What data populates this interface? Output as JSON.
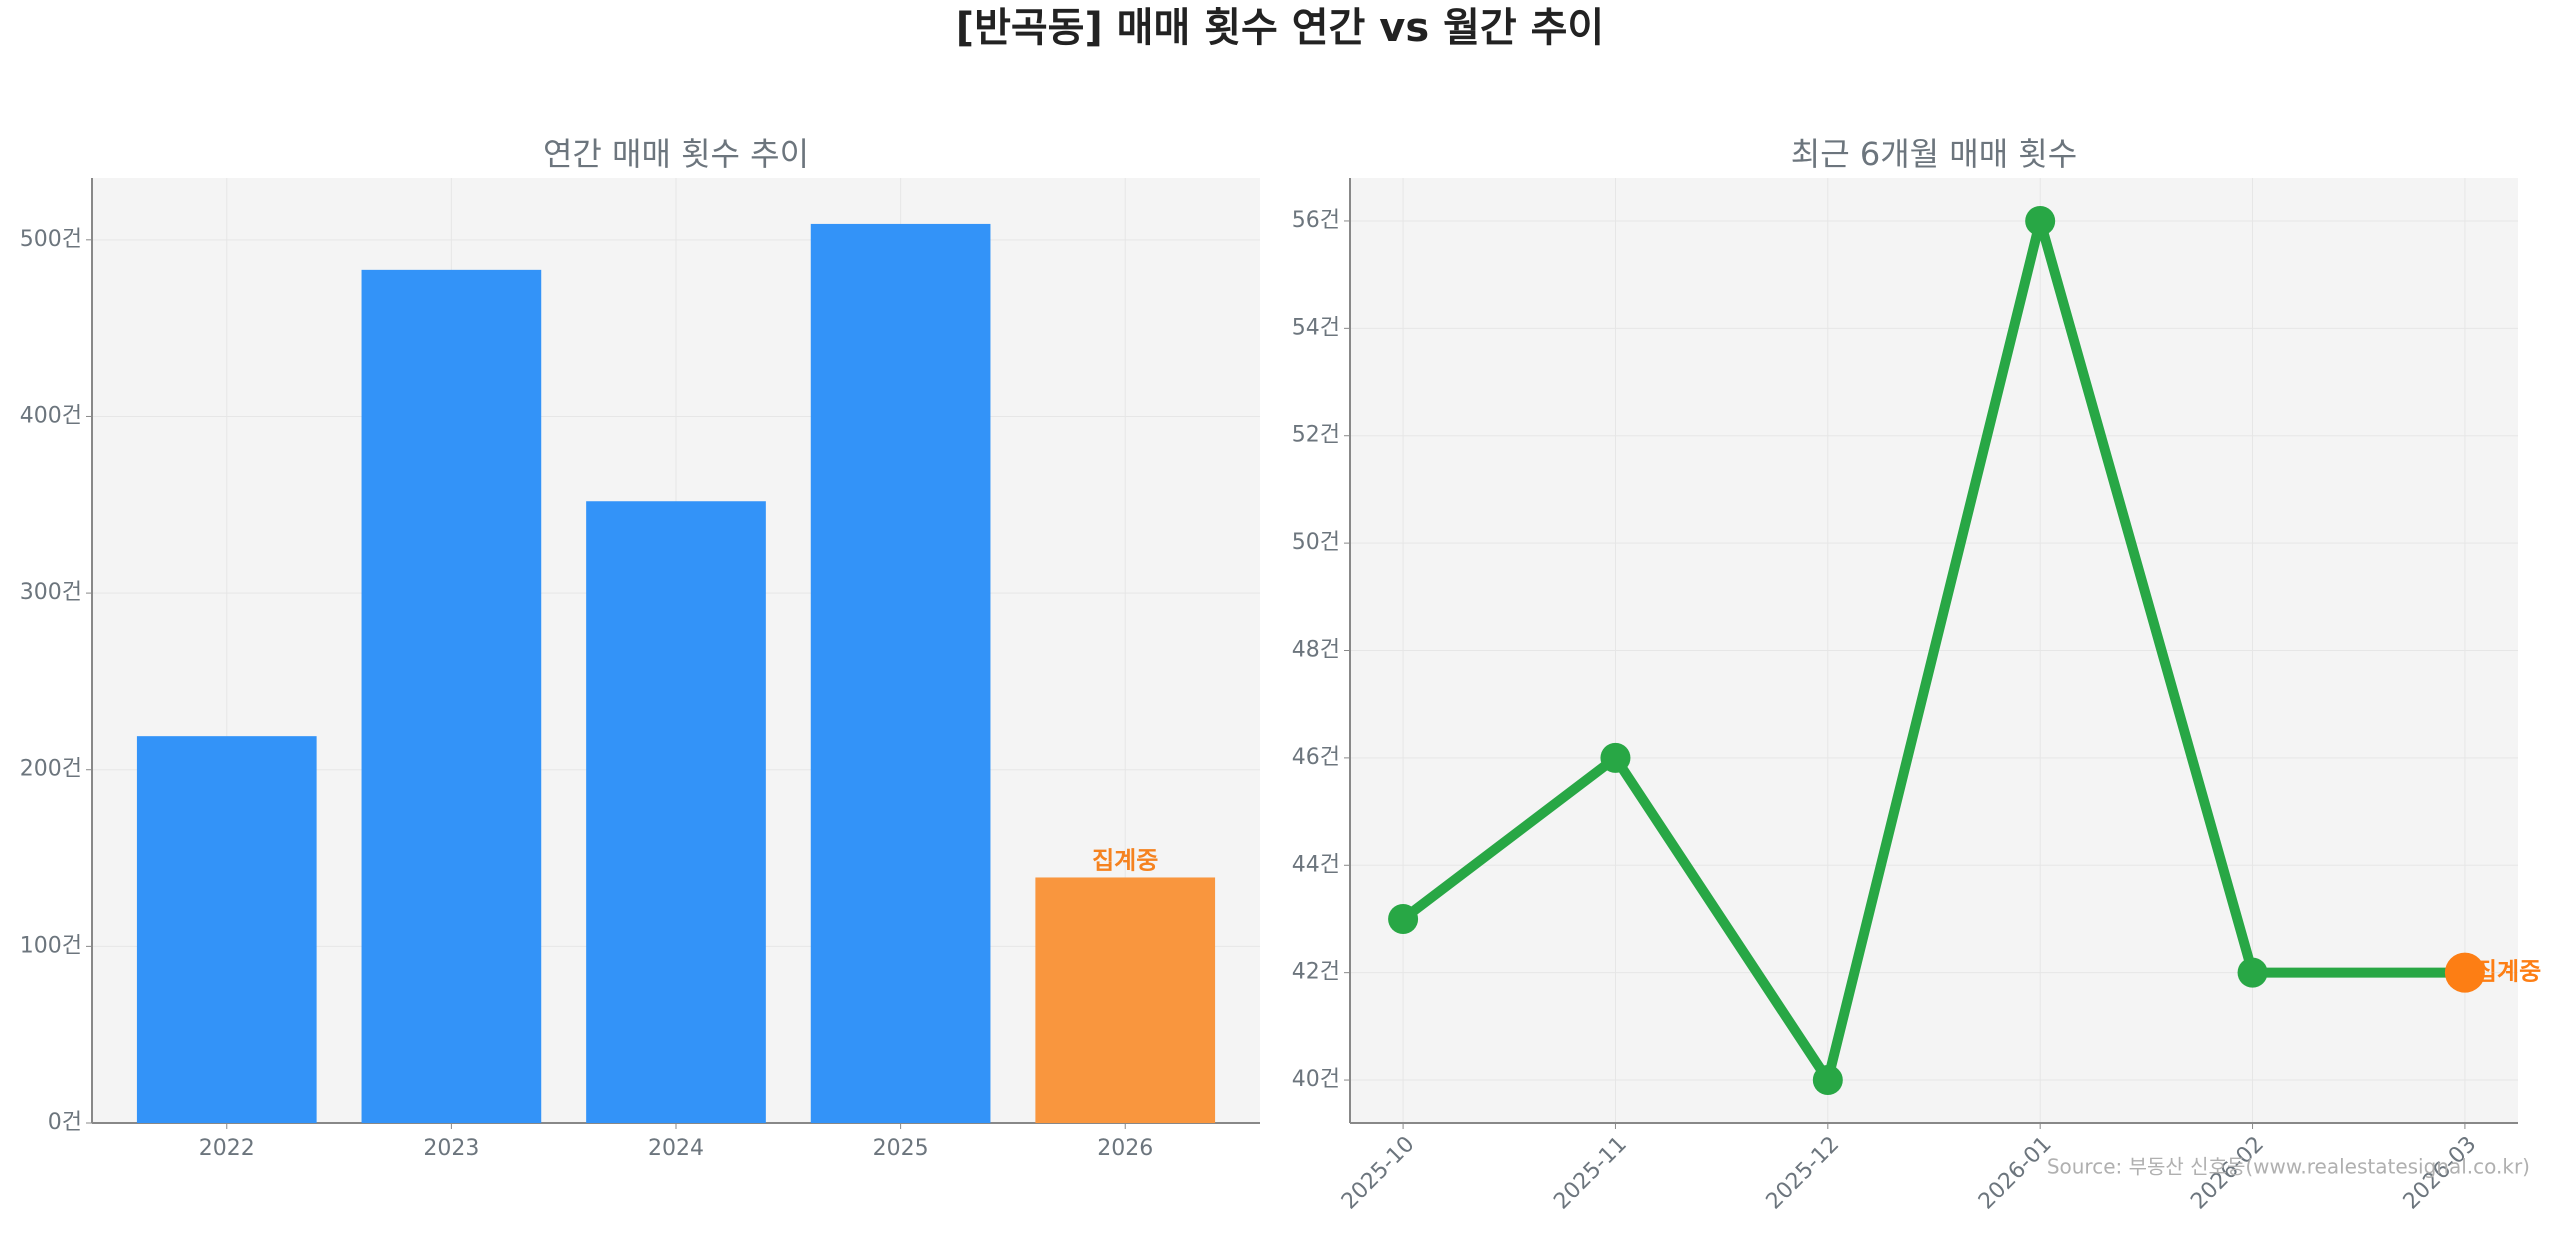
{
  "title": "[반곡동] 매매 횟수 연간 vs 월간 추이",
  "source": "Source: 부동산 신호등(www.realestatesignal.co.kr)",
  "chart_data": [
    {
      "type": "bar",
      "title": "연간 매매 횟수 추이",
      "categories": [
        "2022",
        "2023",
        "2024",
        "2025",
        "2026"
      ],
      "values": [
        219,
        483,
        352,
        509,
        139
      ],
      "colors": [
        "#3393f8",
        "#3393f8",
        "#3393f8",
        "#3393f8",
        "#f9963e"
      ],
      "ylim": [
        0,
        535
      ],
      "yticks": [
        {
          "value": 0,
          "label": "0건"
        },
        {
          "value": 100,
          "label": "100건"
        },
        {
          "value": 200,
          "label": "200건"
        },
        {
          "value": 300,
          "label": "300건"
        },
        {
          "value": 400,
          "label": "400건"
        },
        {
          "value": 500,
          "label": "500건"
        }
      ],
      "grid": true,
      "annotations": [
        {
          "text": "집계중",
          "x": "2026",
          "color": "#f5821f"
        }
      ]
    },
    {
      "type": "line",
      "title": "최근 6개월 매매 횟수",
      "categories": [
        "2025-10",
        "2025-11",
        "2025-12",
        "2026-01",
        "2026-02",
        "2026-03"
      ],
      "values": [
        43,
        46,
        40,
        56,
        42,
        42
      ],
      "color": "#28a745",
      "marker_colors": [
        "#28a745",
        "#28a745",
        "#28a745",
        "#28a745",
        "#28a745",
        "#fd7e14"
      ],
      "ylim": [
        39.2,
        56.8
      ],
      "yticks": [
        {
          "value": 40,
          "label": "40건"
        },
        {
          "value": 42,
          "label": "42건"
        },
        {
          "value": 44,
          "label": "44건"
        },
        {
          "value": 46,
          "label": "46건"
        },
        {
          "value": 48,
          "label": "48건"
        },
        {
          "value": 50,
          "label": "50건"
        },
        {
          "value": 52,
          "label": "52건"
        },
        {
          "value": 54,
          "label": "54건"
        },
        {
          "value": 56,
          "label": "56건"
        }
      ],
      "grid": true,
      "annotations": [
        {
          "text": "집계중",
          "x": "2026-03",
          "color": "#fd7e14"
        }
      ]
    }
  ]
}
